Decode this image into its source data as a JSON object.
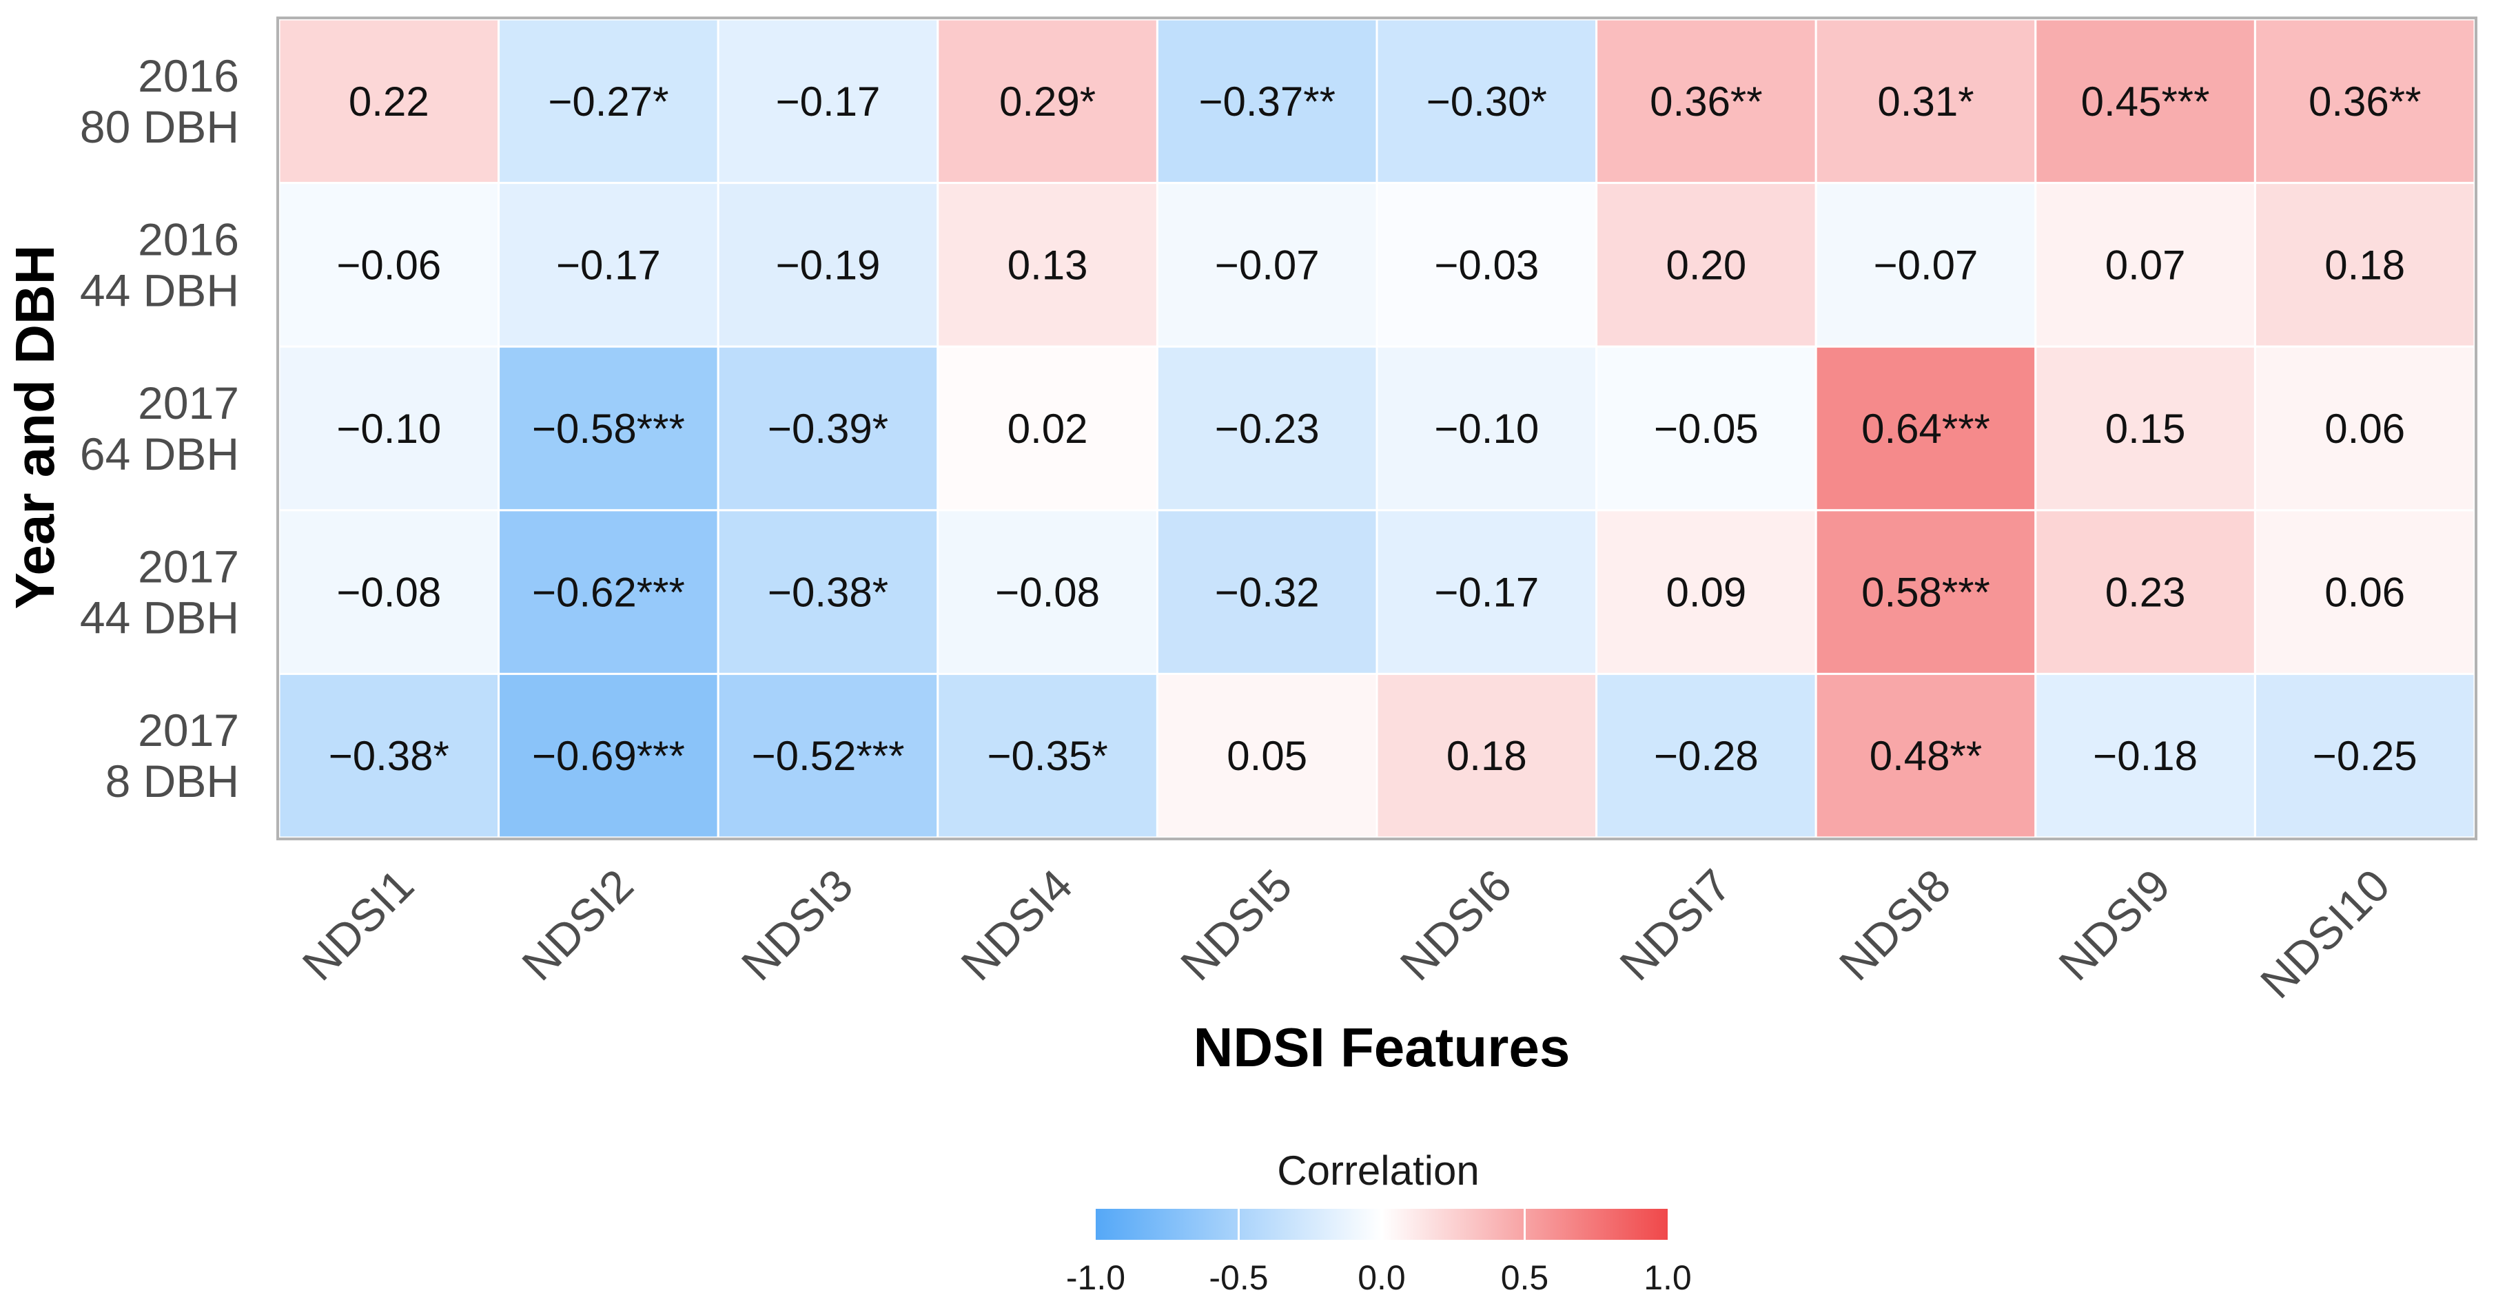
{
  "chart_data": {
    "type": "heatmap",
    "xlabel": "NDSI Features",
    "ylabel": "Year and DBH",
    "x_categories": [
      "NDSI1",
      "NDSI2",
      "NDSI3",
      "NDSI4",
      "NDSI5",
      "NDSI6",
      "NDSI7",
      "NDSI8",
      "NDSI9",
      "NDSI10"
    ],
    "y_categories": [
      {
        "year": "2016",
        "dbh": "80 DBH"
      },
      {
        "year": "2016",
        "dbh": "44 DBH"
      },
      {
        "year": "2017",
        "dbh": "64 DBH"
      },
      {
        "year": "2017",
        "dbh": "44 DBH"
      },
      {
        "year": "2017",
        "dbh": "8 DBH"
      }
    ],
    "values": [
      [
        0.22,
        -0.27,
        -0.17,
        0.29,
        -0.37,
        -0.3,
        0.36,
        0.31,
        0.45,
        0.36
      ],
      [
        -0.06,
        -0.17,
        -0.19,
        0.13,
        -0.07,
        -0.03,
        0.2,
        -0.07,
        0.07,
        0.18
      ],
      [
        -0.1,
        -0.58,
        -0.39,
        0.02,
        -0.23,
        -0.1,
        -0.05,
        0.64,
        0.15,
        0.06
      ],
      [
        -0.08,
        -0.62,
        -0.38,
        -0.08,
        -0.32,
        -0.17,
        0.09,
        0.58,
        0.23,
        0.06
      ],
      [
        -0.38,
        -0.69,
        -0.52,
        -0.35,
        0.05,
        0.18,
        -0.28,
        0.48,
        -0.18,
        -0.25
      ]
    ],
    "labels": [
      [
        "0.22",
        "−0.27*",
        "−0.17",
        "0.29*",
        "−0.37**",
        "−0.30*",
        "0.36**",
        "0.31*",
        "0.45***",
        "0.36**"
      ],
      [
        "−0.06",
        "−0.17",
        "−0.19",
        "0.13",
        "−0.07",
        "−0.03",
        "0.20",
        "−0.07",
        "0.07",
        "0.18"
      ],
      [
        "−0.10",
        "−0.58***",
        "−0.39*",
        "0.02",
        "−0.23",
        "−0.10",
        "−0.05",
        "0.64***",
        "0.15",
        "0.06"
      ],
      [
        "−0.08",
        "−0.62***",
        "−0.38*",
        "−0.08",
        "−0.32",
        "−0.17",
        "0.09",
        "0.58***",
        "0.23",
        "0.06"
      ],
      [
        "−0.38*",
        "−0.69***",
        "−0.52***",
        "−0.35*",
        "0.05",
        "0.18",
        "−0.28",
        "0.48**",
        "−0.18",
        "−0.25"
      ]
    ],
    "color_scale": {
      "low": "#55a8f7",
      "mid": "#ffffff",
      "high": "#f0484a",
      "range": [
        -1.0,
        1.0
      ]
    },
    "legend": {
      "title": "Correlation",
      "ticks": [
        "-1.0",
        "-0.5",
        "0.0",
        "0.5",
        "1.0"
      ],
      "tick_values": [
        -1.0,
        -0.5,
        0.0,
        0.5,
        1.0
      ],
      "position": "bottom-center"
    }
  }
}
